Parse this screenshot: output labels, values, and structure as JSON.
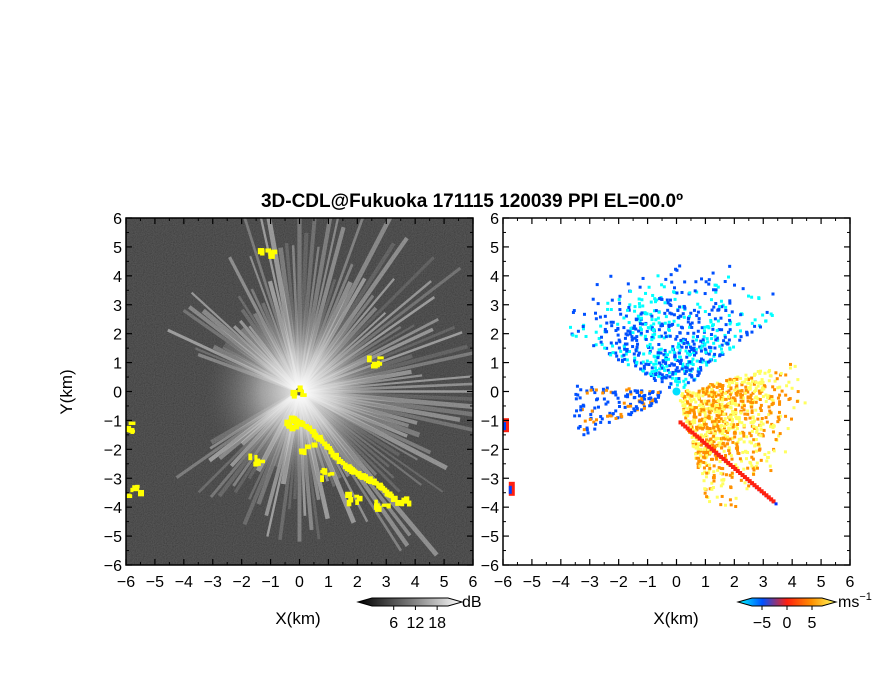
{
  "chart_data": [
    {
      "type": "heatmap",
      "panel": "reflectivity",
      "title": "3D-CDL@Fukuoka 171115 120039 PPI EL=00.0º",
      "xlabel": "X(km)",
      "ylabel": "Y(km)",
      "xlim": [
        -6,
        6
      ],
      "ylim": [
        -6,
        6
      ],
      "xticks": [
        "-6",
        "-5",
        "-4",
        "-3",
        "-2",
        "-1",
        "0",
        "1",
        "2",
        "3",
        "4",
        "5",
        "6"
      ],
      "yticks": [
        "-6",
        "-5",
        "-4",
        "-3",
        "-2",
        "-1",
        "0",
        "1",
        "2",
        "3",
        "4",
        "5",
        "6"
      ],
      "colorbar": {
        "unit": "dB",
        "ticks": [
          "6",
          "12",
          "18"
        ],
        "range": [
          0,
          21
        ],
        "colors": [
          "#000000",
          "#ffffff"
        ]
      },
      "highlight_color": "#ffff00",
      "highlight_regions_km": [
        {
          "x": -1.2,
          "y": 4.8
        },
        {
          "x": 2.5,
          "y": 1.1
        },
        {
          "x": -0.2,
          "y": 0.1
        },
        {
          "x": -6.0,
          "y": -1.2
        },
        {
          "x": -5.8,
          "y": -3.4
        },
        {
          "x": -0.3,
          "y": -1.0
        },
        {
          "x": 0.2,
          "y": -1.9
        },
        {
          "x": 0.9,
          "y": -2.8
        },
        {
          "x": 1.8,
          "y": -3.6
        },
        {
          "x": 2.8,
          "y": -3.9
        },
        {
          "x": 3.5,
          "y": -3.7
        },
        {
          "x": -1.6,
          "y": -2.3
        }
      ]
    },
    {
      "type": "heatmap",
      "panel": "radial_velocity",
      "xlabel": "X(km)",
      "xlim": [
        -6,
        6
      ],
      "ylim": [
        -6,
        6
      ],
      "xticks": [
        "-6",
        "-5",
        "-4",
        "-3",
        "-2",
        "-1",
        "0",
        "1",
        "2",
        "3",
        "4",
        "5",
        "6"
      ],
      "yticks": [
        "-6",
        "-5",
        "-4",
        "-3",
        "-2",
        "-1",
        "0",
        "1",
        "2",
        "3",
        "4",
        "5",
        "6"
      ],
      "colorbar": {
        "unit": "ms",
        "unit_exponent": "−1",
        "ticks": [
          "−5",
          "0",
          "5"
        ],
        "range": [
          -7,
          7
        ],
        "colors": [
          "#00ffff",
          "#0050ff",
          "#ff2010",
          "#ff9000",
          "#ffff60"
        ]
      },
      "velocity_regions_km": [
        {
          "x": -1.0,
          "y": 2.5,
          "v": -4
        },
        {
          "x": 1.5,
          "y": 2.2,
          "v": -3
        },
        {
          "x": 0.0,
          "y": 3.5,
          "v": -5
        },
        {
          "x": 2.0,
          "y": 0.2,
          "v": 3
        },
        {
          "x": 1.5,
          "y": -1.5,
          "v": 4
        },
        {
          "x": 2.8,
          "y": -2.5,
          "v": 5
        },
        {
          "x": -2.2,
          "y": -0.5,
          "v": -3
        },
        {
          "x": -6.0,
          "y": -1.2,
          "v": 2
        },
        {
          "x": -5.8,
          "y": -3.4,
          "v": 2
        },
        {
          "x": 2.8,
          "y": -3.9,
          "v": 1
        }
      ]
    }
  ]
}
